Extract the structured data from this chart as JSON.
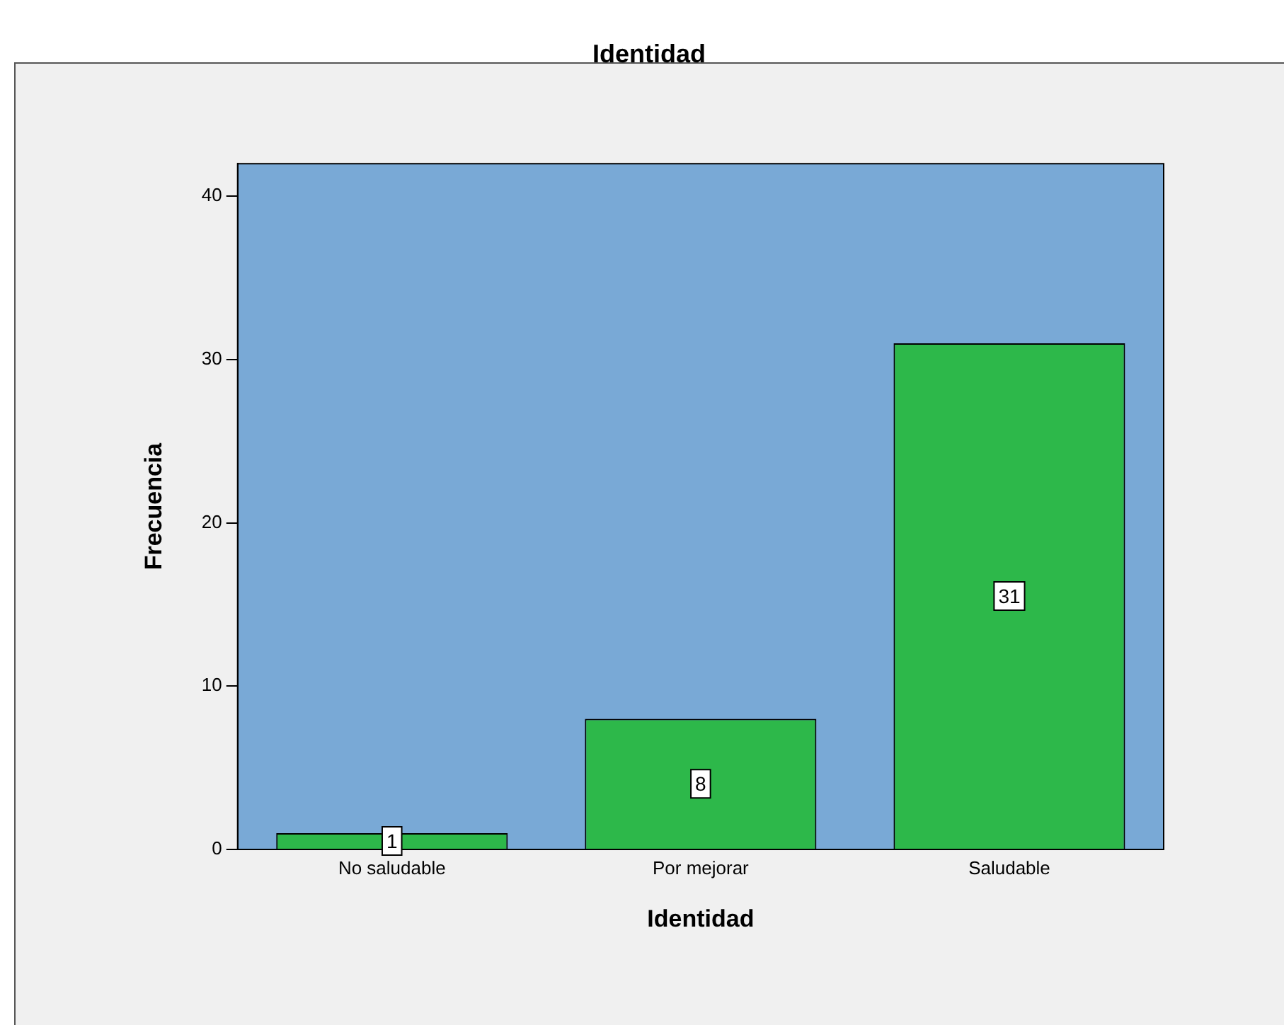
{
  "chart_data": {
    "type": "bar",
    "title": "Identidad",
    "xlabel": "Identidad",
    "ylabel": "Frecuencia",
    "categories": [
      "No saludable",
      "Por mejorar",
      "Saludable"
    ],
    "values": [
      1,
      8,
      31
    ],
    "color": "#2db84a",
    "ylim": [
      0,
      42
    ],
    "yticks": [
      0,
      10,
      20,
      30,
      40
    ],
    "grid": false,
    "legend": false,
    "data_labels": true
  }
}
